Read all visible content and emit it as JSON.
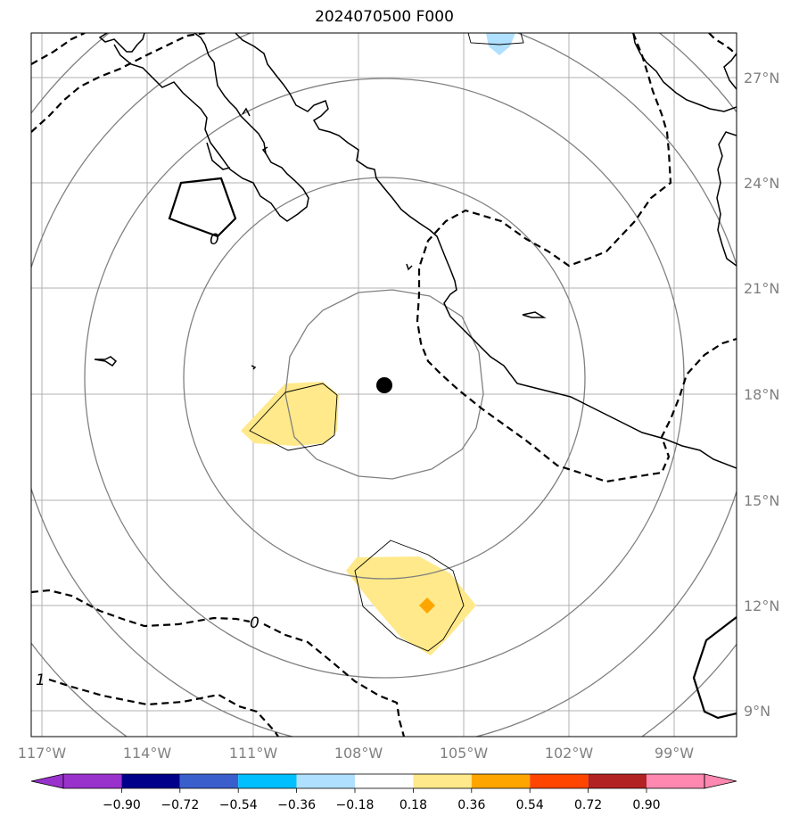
{
  "title": "2024070500 F000",
  "map": {
    "lon_labels": [
      "117°W",
      "114°W",
      "111°W",
      "108°W",
      "105°W",
      "102°W",
      "99°W"
    ],
    "lat_labels": [
      "27°N",
      "24°N",
      "21°N",
      "18°N",
      "15°N",
      "12°N",
      "9°N"
    ],
    "center_marker": {
      "lon": -107.3,
      "lat": 18.2
    },
    "contour_labels": [
      "0",
      "1",
      "0"
    ]
  },
  "colorbar": {
    "ticks": [
      "−0.90",
      "−0.72",
      "−0.54",
      "−0.36",
      "−0.18",
      "0.18",
      "0.36",
      "0.54",
      "0.72",
      "0.90"
    ],
    "colors": [
      "#9932cc",
      "#00008b",
      "#3a5fcd",
      "#00bfff",
      "#b0e0ff",
      "#ffffff",
      "#ffe98a",
      "#ffa500",
      "#ff4500",
      "#b22222",
      "#ff88b0"
    ]
  }
}
